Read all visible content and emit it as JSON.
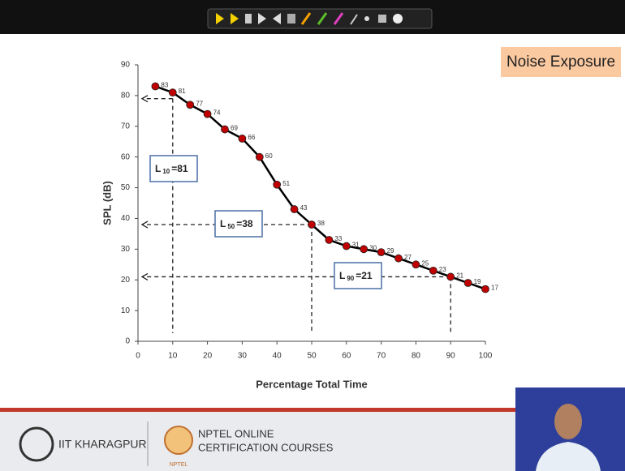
{
  "slide": {
    "title": "Noise Exposure",
    "institute": "IIT KHARAGPUR",
    "program_line1": "NPTEL ONLINE",
    "program_line2": "CERTIFICATION COURSES",
    "logo_text": "NPTEL"
  },
  "chart_data": {
    "type": "line",
    "x_label": "Percentage Total Time",
    "y_label": "SPL (dB)",
    "x": [
      5,
      10,
      15,
      20,
      25,
      30,
      35,
      40,
      45,
      50,
      55,
      60,
      65,
      70,
      75,
      80,
      85,
      90,
      95,
      100
    ],
    "series": [
      {
        "color": "#c00000",
        "values": [
          83,
          81,
          77,
          74,
          69,
          66,
          60,
          51,
          43,
          38,
          33,
          31,
          30,
          29,
          27,
          25,
          23,
          21,
          19,
          17
        ]
      }
    ],
    "xlim": [
      0,
      100
    ],
    "xticks": [
      0,
      10,
      20,
      30,
      40,
      50,
      60,
      70,
      80,
      90,
      100
    ],
    "ylim": [
      0,
      90
    ],
    "yticks": [
      0,
      10,
      20,
      30,
      40,
      50,
      60,
      70,
      80,
      90
    ],
    "grid": false,
    "annotations": [
      {
        "label": "L",
        "subscript": "10",
        "text": "=81",
        "x": 10,
        "y": 79
      },
      {
        "label": "L",
        "subscript": "50",
        "text": "=38",
        "x": 50,
        "y": 38
      },
      {
        "label": "L",
        "subscript": "90",
        "text": "=21",
        "x": 90,
        "y": 21
      }
    ]
  }
}
